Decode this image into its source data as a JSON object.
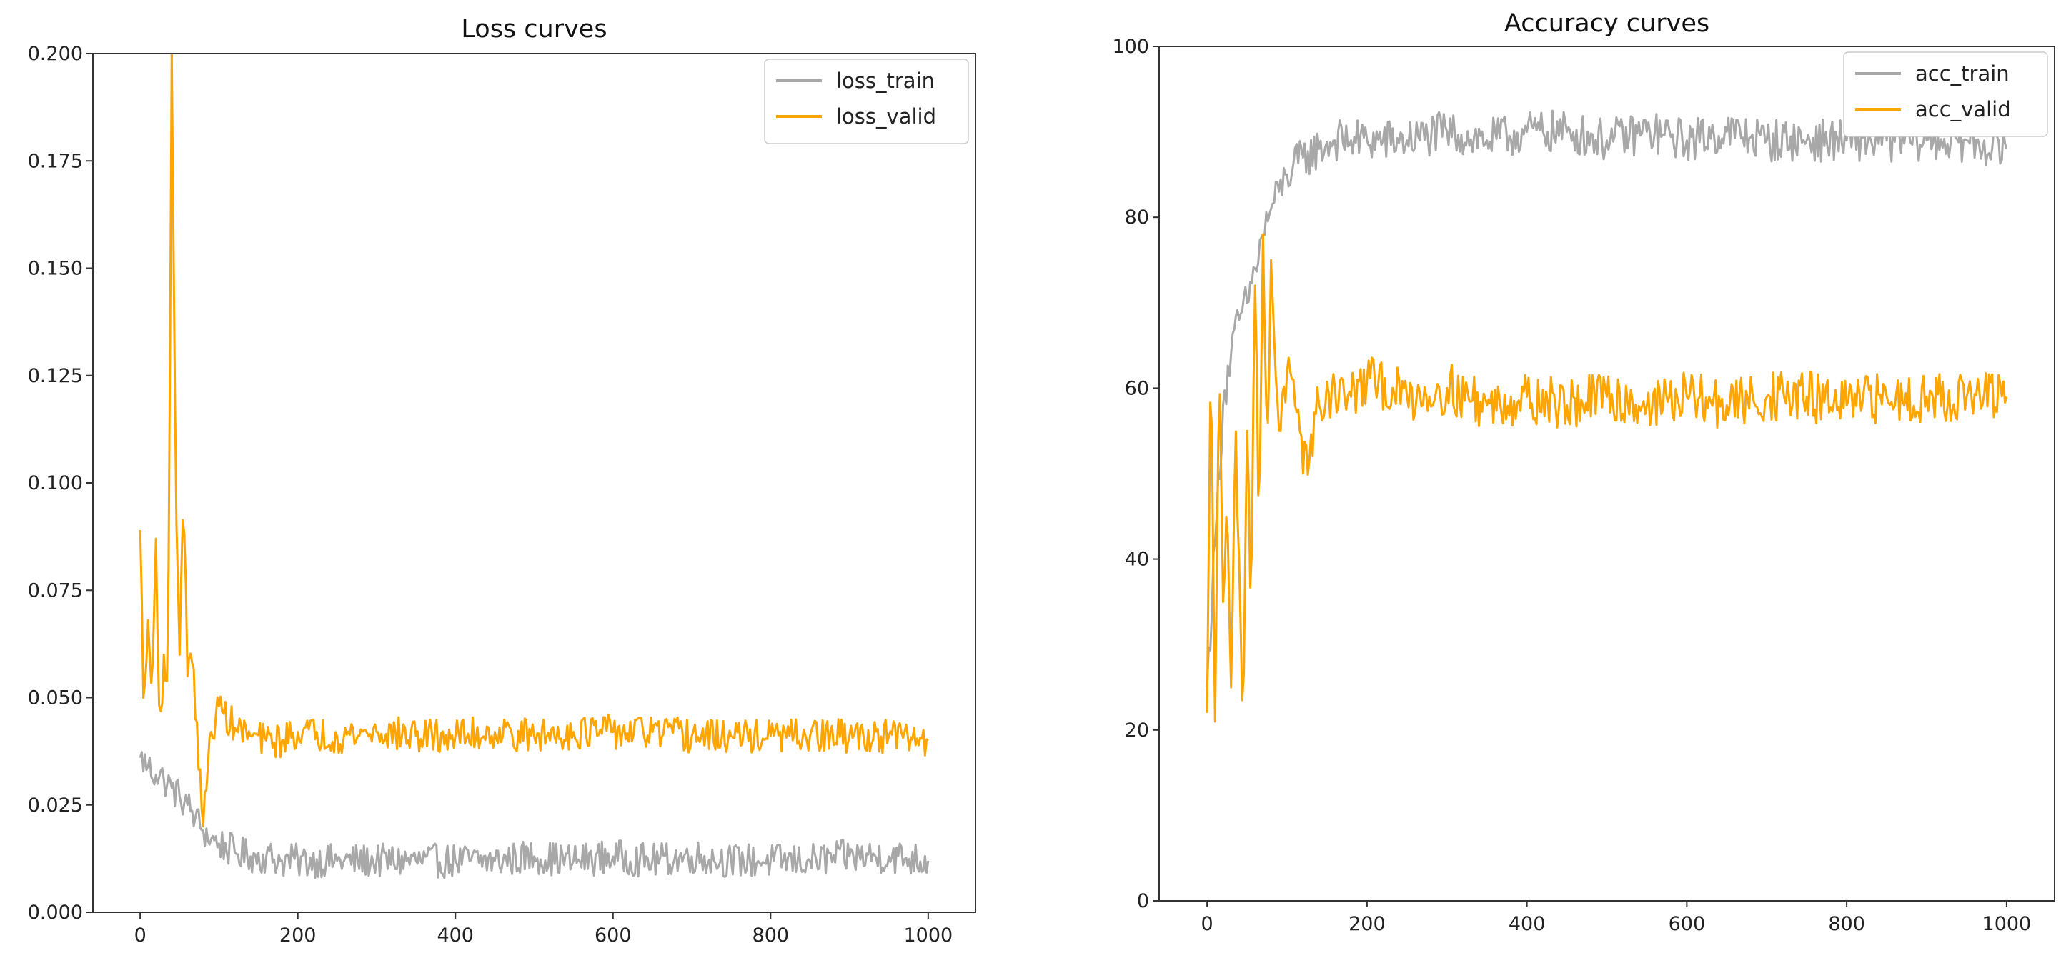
{
  "chart_data": [
    {
      "type": "line",
      "title": "Loss curves",
      "xlabel": "",
      "ylabel": "",
      "xlim": [
        -60,
        1060
      ],
      "ylim": [
        0,
        0.2
      ],
      "xticks": [
        0,
        200,
        400,
        600,
        800,
        1000
      ],
      "yticks": [
        0.0,
        0.025,
        0.05,
        0.075,
        0.1,
        0.125,
        0.15,
        0.175,
        0.2
      ],
      "xtick_labels": [
        "0",
        "200",
        "400",
        "600",
        "800",
        "1000"
      ],
      "ytick_labels": [
        "0.000",
        "0.025",
        "0.050",
        "0.075",
        "0.100",
        "0.125",
        "0.150",
        "0.175",
        "0.200"
      ],
      "grid": false,
      "legend_position": "top-right",
      "series": [
        {
          "name": "loss_train",
          "color": "#a8a8a8",
          "x": [
            0,
            10,
            20,
            30,
            40,
            50,
            60,
            70,
            80,
            90,
            100,
            120,
            140,
            160,
            180,
            200,
            250,
            300,
            350,
            400,
            450,
            500,
            550,
            600,
            650,
            700,
            750,
            800,
            850,
            900,
            950,
            1000
          ],
          "y": [
            0.036,
            0.034,
            0.032,
            0.031,
            0.029,
            0.027,
            0.025,
            0.022,
            0.019,
            0.017,
            0.016,
            0.014,
            0.013,
            0.013,
            0.012,
            0.012,
            0.012,
            0.012,
            0.012,
            0.012,
            0.012,
            0.013,
            0.012,
            0.013,
            0.012,
            0.013,
            0.012,
            0.012,
            0.012,
            0.013,
            0.013,
            0.012
          ],
          "noise": 0.004
        },
        {
          "name": "loss_valid",
          "color": "#ffa500",
          "x": [
            0,
            5,
            10,
            15,
            20,
            25,
            30,
            35,
            40,
            45,
            50,
            55,
            60,
            65,
            70,
            75,
            80,
            90,
            100,
            120,
            140,
            160,
            180,
            200,
            250,
            300,
            350,
            400,
            450,
            500,
            550,
            600,
            650,
            700,
            750,
            800,
            850,
            900,
            950,
            1000
          ],
          "y": [
            0.089,
            0.045,
            0.068,
            0.05,
            0.087,
            0.041,
            0.06,
            0.048,
            0.2,
            0.102,
            0.06,
            0.099,
            0.055,
            0.065,
            0.045,
            0.035,
            0.02,
            0.042,
            0.048,
            0.043,
            0.041,
            0.04,
            0.04,
            0.042,
            0.041,
            0.042,
            0.041,
            0.041,
            0.042,
            0.041,
            0.042,
            0.042,
            0.042,
            0.041,
            0.041,
            0.041,
            0.041,
            0.041,
            0.041,
            0.04
          ],
          "noise": 0.004
        }
      ]
    },
    {
      "type": "line",
      "title": "Accuracy curves",
      "xlabel": "",
      "ylabel": "",
      "xlim": [
        -60,
        1060
      ],
      "ylim": [
        0,
        100
      ],
      "xticks": [
        0,
        200,
        400,
        600,
        800,
        1000
      ],
      "yticks": [
        0,
        20,
        40,
        60,
        80,
        100
      ],
      "xtick_labels": [
        "0",
        "200",
        "400",
        "600",
        "800",
        "1000"
      ],
      "ytick_labels": [
        "0",
        "20",
        "40",
        "60",
        "80",
        "100"
      ],
      "grid": false,
      "legend_position": "top-right",
      "series": [
        {
          "name": "acc_train",
          "color": "#a8a8a8",
          "x": [
            0,
            10,
            20,
            30,
            40,
            50,
            60,
            70,
            80,
            90,
            100,
            120,
            140,
            160,
            180,
            200,
            250,
            300,
            350,
            400,
            450,
            500,
            550,
            600,
            650,
            700,
            750,
            800,
            850,
            900,
            950,
            1000
          ],
          "y": [
            25,
            42,
            58,
            64,
            68,
            70,
            74,
            78,
            81,
            83,
            85,
            87,
            88,
            89,
            89,
            89,
            89,
            90,
            89,
            90,
            90,
            89,
            90,
            89,
            90,
            89,
            89,
            89,
            89,
            89,
            89,
            88
          ],
          "noise": 2.5
        },
        {
          "name": "acc_valid",
          "color": "#ffa500",
          "x": [
            0,
            5,
            10,
            15,
            20,
            25,
            30,
            35,
            40,
            45,
            50,
            55,
            60,
            65,
            70,
            75,
            80,
            90,
            100,
            110,
            120,
            140,
            160,
            180,
            200,
            250,
            300,
            350,
            400,
            450,
            500,
            550,
            600,
            650,
            700,
            750,
            800,
            850,
            900,
            950,
            1000
          ],
          "y": [
            22,
            65,
            21,
            66,
            35,
            45,
            25,
            55,
            40,
            23,
            55,
            35,
            72,
            45,
            78,
            50,
            75,
            55,
            62,
            58,
            50,
            58,
            60,
            59,
            61,
            59,
            60,
            58,
            59,
            58,
            59,
            58,
            59,
            58,
            59,
            59,
            58,
            59,
            59,
            59,
            59
          ],
          "noise": 3.0
        }
      ]
    }
  ]
}
